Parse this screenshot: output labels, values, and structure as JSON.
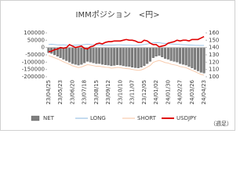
{
  "chart_data": {
    "type": "bar-line",
    "title": "IMMポジション　<円>",
    "note": "（週足）",
    "categories": [
      "23/04/25",
      null,
      null,
      null,
      "23/05/23",
      null,
      null,
      null,
      "23/06/20",
      null,
      null,
      null,
      "23/07/18",
      null,
      null,
      null,
      "23/08/15",
      null,
      null,
      null,
      "23/09/12",
      null,
      null,
      null,
      "23/10/10",
      null,
      null,
      null,
      "23/11/07",
      null,
      null,
      null,
      "23/12/05",
      null,
      null,
      null,
      "24/01/02",
      null,
      null,
      null,
      "24/01/30",
      null,
      null,
      null,
      "24/02/27",
      null,
      null,
      null,
      "24/03/26",
      null,
      null,
      null,
      "24/04/23"
    ],
    "series": [
      {
        "name": "NET",
        "kind": "bar",
        "color": "#7f7f7f",
        "values": [
          -35000,
          -40000,
          -50000,
          -60000,
          -70000,
          -80000,
          -90000,
          -100000,
          -110000,
          -115000,
          -120000,
          -115000,
          -105000,
          -95000,
          -100000,
          -105000,
          -110000,
          -110000,
          -115000,
          -118000,
          -120000,
          -125000,
          -122000,
          -118000,
          -120000,
          -125000,
          -128000,
          -130000,
          -135000,
          -138000,
          -140000,
          -135000,
          -125000,
          -110000,
          -95000,
          -70000,
          -60000,
          -55000,
          -65000,
          -75000,
          -80000,
          -90000,
          -95000,
          -100000,
          -110000,
          -115000,
          -120000,
          -130000,
          -140000,
          -150000,
          -160000,
          -170000,
          -175000
        ]
      },
      {
        "name": "LONG",
        "kind": "line",
        "color": "#9dc3e6",
        "values": [
          20000,
          22000,
          20000,
          18000,
          17000,
          18000,
          16000,
          15000,
          15000,
          16000,
          17000,
          18000,
          20000,
          22000,
          20000,
          19000,
          18000,
          18000,
          17000,
          17000,
          16000,
          16000,
          17000,
          18000,
          18000,
          17000,
          16000,
          16000,
          15000,
          15000,
          16000,
          18000,
          20000,
          24000,
          28000,
          32000,
          34000,
          33000,
          30000,
          28000,
          26000,
          24000,
          23000,
          22000,
          20000,
          19000,
          18000,
          17000,
          16000,
          15000,
          15000,
          14000,
          14000
        ]
      },
      {
        "name": "SHORT",
        "kind": "line",
        "color": "#f8cbad",
        "values": [
          -55000,
          -62000,
          -70000,
          -78000,
          -87000,
          -98000,
          -106000,
          -115000,
          -125000,
          -131000,
          -137000,
          -133000,
          -125000,
          -117000,
          -120000,
          -124000,
          -128000,
          -128000,
          -132000,
          -135000,
          -136000,
          -141000,
          -139000,
          -136000,
          -138000,
          -142000,
          -144000,
          -146000,
          -150000,
          -153000,
          -156000,
          -153000,
          -145000,
          -134000,
          -123000,
          -102000,
          -94000,
          -88000,
          -95000,
          -103000,
          -106000,
          -114000,
          -118000,
          -122000,
          -130000,
          -134000,
          -138000,
          -147000,
          -156000,
          -165000,
          -175000,
          -184000,
          -189000
        ]
      },
      {
        "name": "USDJPY",
        "kind": "line",
        "axis": "y2",
        "color": "#e00000",
        "values": [
          134,
          135,
          137,
          138,
          140,
          139,
          140,
          144,
          142,
          140,
          141,
          142,
          139,
          138,
          141,
          142,
          145,
          146,
          145,
          147,
          148,
          148,
          149,
          149,
          149,
          150,
          151,
          150,
          150,
          149,
          147,
          147,
          150,
          149,
          146,
          144,
          144,
          141,
          142,
          143,
          146,
          147,
          148,
          150,
          149,
          150,
          150,
          149,
          151,
          151,
          151,
          153,
          155
        ]
      }
    ],
    "ylim": [
      -200000,
      100000
    ],
    "yticks": [
      -200000,
      -150000,
      -100000,
      -50000,
      0,
      50000,
      100000
    ],
    "y2lim": [
      100,
      160
    ],
    "y2ticks": [
      100,
      110,
      120,
      130,
      140,
      150,
      160
    ],
    "legend": "bottom"
  }
}
